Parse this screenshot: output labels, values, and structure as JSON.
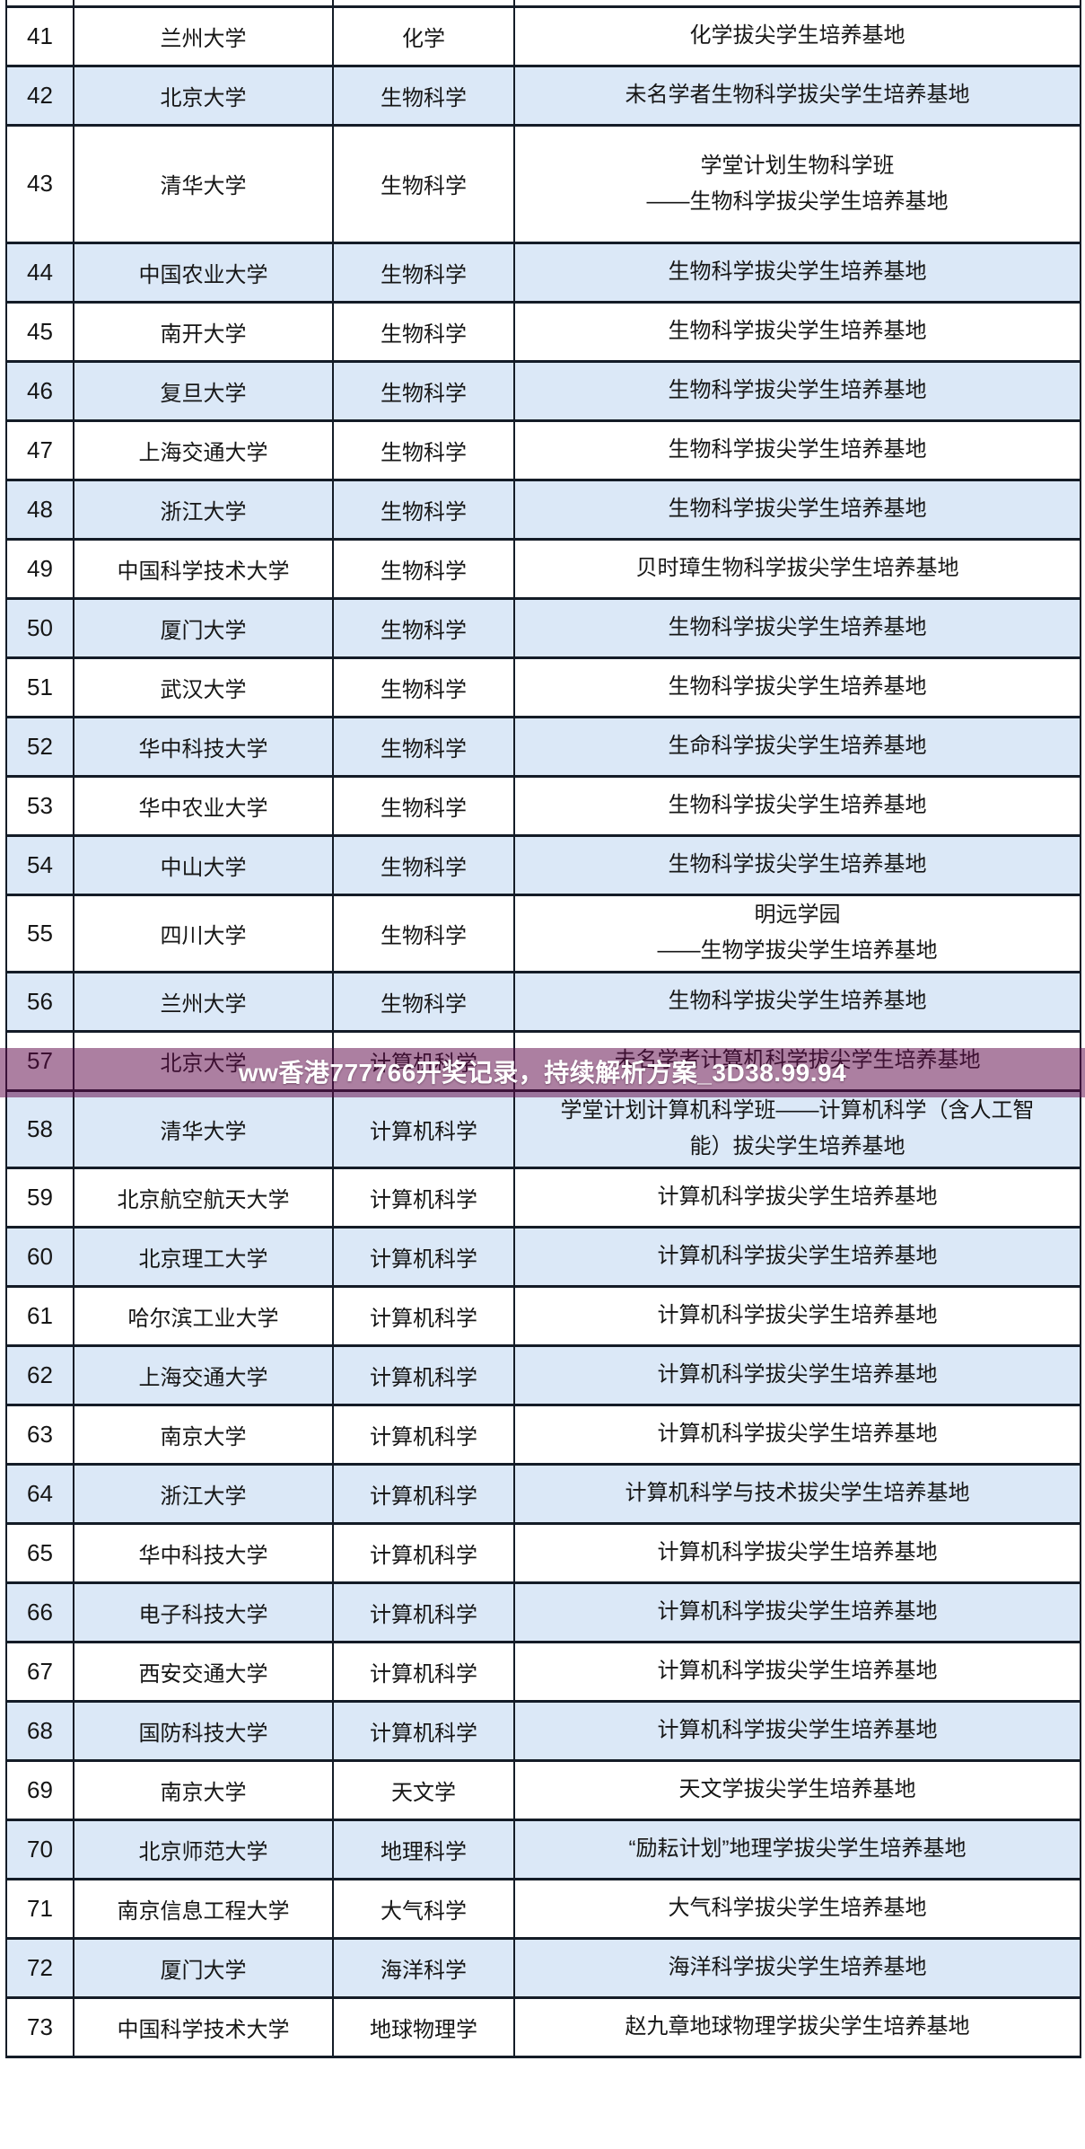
{
  "overlay": {
    "text": "ww香港777766开奖记录，持续解析方案_3D38.99.94",
    "background_tint": "#5f0a4a",
    "text_color": "#ffffff"
  },
  "table": {
    "colors": {
      "shaded_row": "#dbe8f7",
      "plain_row": "#ffffff",
      "border": "#141c27",
      "text": "#161616"
    },
    "rows": [
      {
        "no": "41",
        "school": "兰州大学",
        "subject": "化学",
        "base": "化学拔尖学生培养基地",
        "shaded": false
      },
      {
        "no": "42",
        "school": "北京大学",
        "subject": "生物科学",
        "base": "未名学者生物科学拔尖学生培养基地",
        "shaded": true
      },
      {
        "no": "43",
        "school": "清华大学",
        "subject": "生物科学",
        "base": [
          "学堂计划生物科学班",
          "——生物科学拔尖学生培养基地"
        ],
        "shaded": false,
        "size": "xl"
      },
      {
        "no": "44",
        "school": "中国农业大学",
        "subject": "生物科学",
        "base": "生物科学拔尖学生培养基地",
        "shaded": true
      },
      {
        "no": "45",
        "school": "南开大学",
        "subject": "生物科学",
        "base": "生物科学拔尖学生培养基地",
        "shaded": false
      },
      {
        "no": "46",
        "school": "复旦大学",
        "subject": "生物科学",
        "base": "生物科学拔尖学生培养基地",
        "shaded": true
      },
      {
        "no": "47",
        "school": "上海交通大学",
        "subject": "生物科学",
        "base": "生物科学拔尖学生培养基地",
        "shaded": false
      },
      {
        "no": "48",
        "school": "浙江大学",
        "subject": "生物科学",
        "base": "生物科学拔尖学生培养基地",
        "shaded": true
      },
      {
        "no": "49",
        "school": "中国科学技术大学",
        "subject": "生物科学",
        "base": "贝时璋生物科学拔尖学生培养基地",
        "shaded": false
      },
      {
        "no": "50",
        "school": "厦门大学",
        "subject": "生物科学",
        "base": "生物科学拔尖学生培养基地",
        "shaded": true
      },
      {
        "no": "51",
        "school": "武汉大学",
        "subject": "生物科学",
        "base": "生物科学拔尖学生培养基地",
        "shaded": false
      },
      {
        "no": "52",
        "school": "华中科技大学",
        "subject": "生物科学",
        "base": "生命科学拔尖学生培养基地",
        "shaded": true
      },
      {
        "no": "53",
        "school": "华中农业大学",
        "subject": "生物科学",
        "base": "生物科学拔尖学生培养基地",
        "shaded": false
      },
      {
        "no": "54",
        "school": "中山大学",
        "subject": "生物科学",
        "base": "生物科学拔尖学生培养基地",
        "shaded": true
      },
      {
        "no": "55",
        "school": "四川大学",
        "subject": "生物科学",
        "base": [
          "明远学园",
          "——生物学拔尖学生培养基地"
        ],
        "shaded": false,
        "size": "lg"
      },
      {
        "no": "56",
        "school": "兰州大学",
        "subject": "生物科学",
        "base": "生物科学拔尖学生培养基地",
        "shaded": true
      },
      {
        "no": "57",
        "school": "北京大学",
        "subject": "计算机科学",
        "base": "未名学者计算机科学拔尖学生培养基地",
        "shaded": false
      },
      {
        "no": "58",
        "school": "清华大学",
        "subject": "计算机科学",
        "base": [
          "学堂计划计算机科学班——计算机科学（含人工智",
          "能）拔尖学生培养基地"
        ],
        "shaded": true,
        "size": "lg"
      },
      {
        "no": "59",
        "school": "北京航空航天大学",
        "subject": "计算机科学",
        "base": "计算机科学拔尖学生培养基地",
        "shaded": false
      },
      {
        "no": "60",
        "school": "北京理工大学",
        "subject": "计算机科学",
        "base": "计算机科学拔尖学生培养基地",
        "shaded": true
      },
      {
        "no": "61",
        "school": "哈尔滨工业大学",
        "subject": "计算机科学",
        "base": "计算机科学拔尖学生培养基地",
        "shaded": false
      },
      {
        "no": "62",
        "school": "上海交通大学",
        "subject": "计算机科学",
        "base": "计算机科学拔尖学生培养基地",
        "shaded": true
      },
      {
        "no": "63",
        "school": "南京大学",
        "subject": "计算机科学",
        "base": "计算机科学拔尖学生培养基地",
        "shaded": false
      },
      {
        "no": "64",
        "school": "浙江大学",
        "subject": "计算机科学",
        "base": "计算机科学与技术拔尖学生培养基地",
        "shaded": true
      },
      {
        "no": "65",
        "school": "华中科技大学",
        "subject": "计算机科学",
        "base": "计算机科学拔尖学生培养基地",
        "shaded": false
      },
      {
        "no": "66",
        "school": "电子科技大学",
        "subject": "计算机科学",
        "base": "计算机科学拔尖学生培养基地",
        "shaded": true
      },
      {
        "no": "67",
        "school": "西安交通大学",
        "subject": "计算机科学",
        "base": "计算机科学拔尖学生培养基地",
        "shaded": false
      },
      {
        "no": "68",
        "school": "国防科技大学",
        "subject": "计算机科学",
        "base": "计算机科学拔尖学生培养基地",
        "shaded": true
      },
      {
        "no": "69",
        "school": "南京大学",
        "subject": "天文学",
        "base": "天文学拔尖学生培养基地",
        "shaded": false
      },
      {
        "no": "70",
        "school": "北京师范大学",
        "subject": "地理科学",
        "base": "“励耘计划”地理学拔尖学生培养基地",
        "shaded": true
      },
      {
        "no": "71",
        "school": "南京信息工程大学",
        "subject": "大气科学",
        "base": "大气科学拔尖学生培养基地",
        "shaded": false
      },
      {
        "no": "72",
        "school": "厦门大学",
        "subject": "海洋科学",
        "base": "海洋科学拔尖学生培养基地",
        "shaded": true
      },
      {
        "no": "73",
        "school": "中国科学技术大学",
        "subject": "地球物理学",
        "base": "赵九章地球物理学拔尖学生培养基地",
        "shaded": false
      }
    ]
  }
}
